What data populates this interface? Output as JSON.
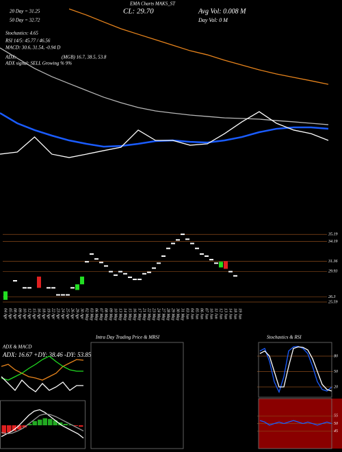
{
  "chart_data": [
    {
      "type": "line",
      "title": "EMA Charts MAKS_ST",
      "annotations": [
        "20 Day = 31.25",
        "50 Day = 32.72",
        "CL: 29.70",
        "Avg Vol: 0.008 M",
        "Day Vol: 0  M",
        "Stochastics: 4.65",
        "RSI 14/5: 45.77 / 46.56",
        "MACD: 30.6, 31.54, -0.94  D",
        "ADX:",
        "(MGB) 16.7, 38.5, 53.8",
        "ADX  signal: SELL Growing % 9%"
      ],
      "ylim": [
        26,
        40
      ],
      "series": [
        {
          "color": "#e8841c",
          "values": [
            null,
            null,
            null,
            null,
            39.24,
            38.72,
            38.13,
            37.55,
            37.08,
            36.62,
            36.15,
            35.68,
            35.33,
            34.87,
            34.46,
            34.05,
            33.7,
            33.41,
            33.12,
            32.82
          ]
        },
        {
          "color": "#b8b8b8",
          "values": [
            35.92,
            35.04,
            34.17,
            33.47,
            32.88,
            32.3,
            31.72,
            31.25,
            30.84,
            30.55,
            30.37,
            30.2,
            30.08,
            29.96,
            29.91,
            29.85,
            29.73,
            29.62,
            29.5,
            29.38
          ]
        },
        {
          "color": "#1a5cff",
          "values": [
            30.37,
            29.5,
            28.92,
            28.45,
            28.04,
            27.75,
            27.51,
            27.57,
            27.75,
            27.98,
            28.04,
            27.92,
            27.86,
            28.04,
            28.33,
            28.74,
            29.03,
            29.15,
            29.15,
            29.03
          ]
        },
        {
          "color": "#ffffff",
          "values": [
            26.87,
            27.05,
            28.33,
            26.87,
            26.58,
            26.87,
            27.17,
            27.46,
            28.92,
            28.04,
            28.04,
            27.63,
            27.75,
            28.62,
            29.62,
            30.49,
            29.5,
            28.92,
            28.62,
            28.04
          ]
        }
      ]
    },
    {
      "type": "candlestick",
      "categories": [
        "04 Apr",
        "05 Apr",
        "08 Apr",
        "09 Apr",
        "10 Apr",
        "12 Apr",
        "15 Apr",
        "16 Apr",
        "18 Apr",
        "19 Apr",
        "22 Apr",
        "23 Apr",
        "24 Apr",
        "25 Apr",
        "26 Apr",
        "29 Apr",
        "30 Apr",
        "02 May",
        "03 May",
        "06 May",
        "07 May",
        "08 May",
        "09 May",
        "10 May",
        "13 May",
        "14 May",
        "15 May",
        "16 May",
        "17 May",
        "21 May",
        "22 May",
        "23 May",
        "24 May",
        "27 May",
        "28 May",
        "29 May",
        "30 May",
        "31 May",
        "03 Jun",
        "04 Jun",
        "05 Jun",
        "06 Jun",
        "07 Jun",
        "10 Jun",
        "11 Jun",
        "12 Jun",
        "13 Jun",
        "14 Jun",
        "18 Jun",
        "19 Jun"
      ],
      "open": [
        25.9,
        null,
        28.6,
        null,
        27.6,
        27.6,
        null,
        29.2,
        null,
        27.6,
        27.6,
        26.6,
        26.6,
        26.6,
        27.6,
        27.3,
        28.1,
        31.3,
        32.4,
        31.7,
        31.2,
        30.7,
        29.9,
        29.4,
        29.9,
        29.6,
        29.1,
        28.8,
        28.8,
        29.6,
        29.8,
        30.4,
        31.1,
        32.1,
        33.2,
        33.9,
        34.4,
        35.2,
        34.5,
        33.9,
        33.2,
        32.4,
        32.1,
        31.6,
        31.1,
        30.5,
        31.4,
        29.9,
        29.3,
        null
      ],
      "close": [
        27.1,
        null,
        28.6,
        null,
        27.6,
        27.6,
        null,
        27.6,
        null,
        27.6,
        27.6,
        26.6,
        26.6,
        26.6,
        27.6,
        28.1,
        29.2,
        31.3,
        32.4,
        31.7,
        31.2,
        30.7,
        29.9,
        29.4,
        29.9,
        29.6,
        29.1,
        28.8,
        28.8,
        29.6,
        29.8,
        30.4,
        31.1,
        32.1,
        33.2,
        33.9,
        34.4,
        35.2,
        34.5,
        33.9,
        33.2,
        32.4,
        32.1,
        31.6,
        31.1,
        31.3,
        30.3,
        29.9,
        29.3,
        null
      ],
      "up_color": "#22dd22",
      "down_color": "#e02020",
      "doji_color": "#ffffff",
      "ylim": [
        25.2,
        35.6
      ],
      "yticks": [
        35.19,
        34.19,
        31.36,
        29.93,
        26.3,
        25.59
      ],
      "grid": true
    },
    {
      "type": "line",
      "title": "ADX  & MACD",
      "subtitle": "ADX: 16.67 +DY: 38.46 -DY: 53.85",
      "ylim": [
        0,
        70
      ],
      "series": [
        {
          "color": "#e8841c",
          "values": [
            45,
            48,
            40,
            35,
            30,
            28,
            25,
            30,
            35,
            45,
            50,
            55,
            54
          ]
        },
        {
          "color": "#22dd22",
          "values": [
            28,
            25,
            30,
            35,
            42,
            48,
            55,
            60,
            52,
            45,
            40,
            38,
            38
          ]
        },
        {
          "color": "#ffffff",
          "values": [
            30,
            20,
            10,
            25,
            15,
            8,
            20,
            10,
            15,
            22,
            10,
            17,
            17
          ]
        }
      ]
    },
    {
      "type": "macd",
      "ylim": [
        -1.5,
        1.5
      ],
      "up_color": "#22aa22",
      "down_color": "#e02020",
      "values": [
        -0.6,
        -0.5,
        -0.4,
        -0.3,
        -0.15,
        0.1,
        0.3,
        0.4,
        0.5,
        0.45,
        0.35,
        0.2,
        0.1,
        0.05,
        -0.05,
        -0.1
      ],
      "series": [
        {
          "color": "#ffffff",
          "values": [
            -0.8,
            -0.6,
            -0.4,
            -0.1,
            0.3,
            0.7,
            1.0,
            1.1,
            0.9,
            0.6,
            0.3,
            0.0,
            -0.2,
            -0.4,
            -0.6,
            -0.9
          ]
        },
        {
          "color": "#999999",
          "values": [
            -0.5,
            -0.6,
            -0.55,
            -0.4,
            -0.2,
            0.1,
            0.4,
            0.7,
            0.8,
            0.75,
            0.6,
            0.4,
            0.2,
            0.0,
            -0.2,
            -0.4
          ]
        }
      ]
    },
    {
      "type": "line",
      "title": "Intra Day Trading Price & MRSI",
      "series": []
    },
    {
      "type": "line",
      "title": "Stochastics & RSI",
      "ylim": [
        0,
        100
      ],
      "yticks": [
        80,
        50,
        20
      ],
      "grid": true,
      "series": [
        {
          "color": "#1a5cff",
          "values": [
            90,
            95,
            70,
            30,
            10,
            40,
            90,
            98,
            99,
            95,
            85,
            60,
            30,
            15,
            12,
            20
          ]
        },
        {
          "color": "#ffffff",
          "values": [
            85,
            90,
            80,
            50,
            20,
            20,
            60,
            95,
            98,
            97,
            92,
            75,
            50,
            25,
            15,
            12
          ]
        }
      ]
    },
    {
      "type": "line",
      "ylim": [
        35,
        65
      ],
      "yticks": [
        55,
        50,
        45
      ],
      "grid": true,
      "background": "#8a0000",
      "series": [
        {
          "color": "#1a5cff",
          "values": [
            52,
            51,
            49,
            50,
            51,
            50,
            51,
            52,
            51,
            50,
            51,
            50,
            49,
            50,
            51,
            50
          ]
        }
      ]
    }
  ]
}
